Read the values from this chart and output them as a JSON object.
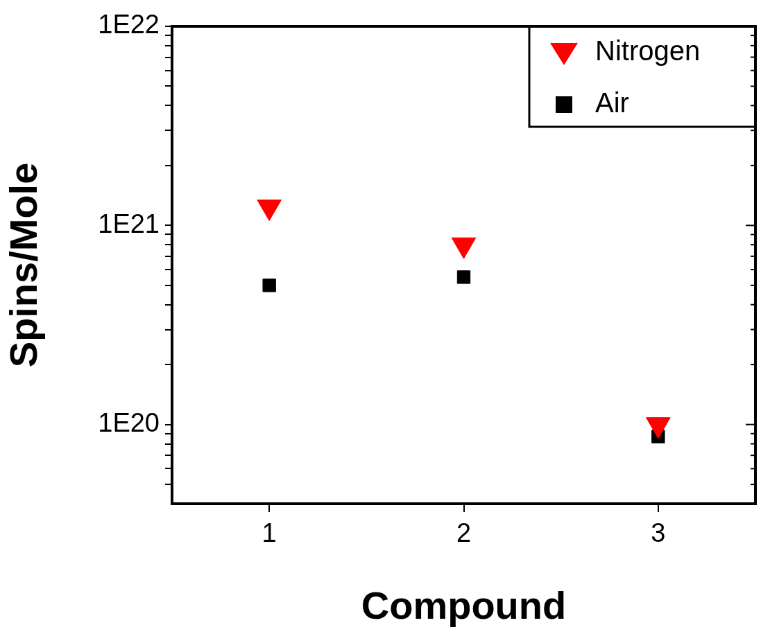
{
  "chart_data": {
    "type": "scatter",
    "xlabel": "Compound",
    "ylabel": "Spins/Mole",
    "x": [
      1,
      2,
      3
    ],
    "series": [
      {
        "name": "Nitrogen",
        "color": "#ff0000",
        "marker": "triangle",
        "values": [
          1.24e+21,
          8e+20,
          1e+20
        ]
      },
      {
        "name": "Air",
        "color": "#000000",
        "marker": "square",
        "values": [
          5e+20,
          5.5e+20,
          8.7e+19
        ]
      }
    ],
    "log": "y",
    "xlim": [
      0.5,
      3.5
    ],
    "xticks": [
      1,
      2,
      3
    ],
    "ylim": [
      4e+19,
      1e+22
    ],
    "yticks": [
      {
        "value": 5e+19,
        "label": null
      },
      {
        "value": 6e+19,
        "label": null
      },
      {
        "value": 7e+19,
        "label": null
      },
      {
        "value": 8e+19,
        "label": null
      },
      {
        "value": 9e+19,
        "label": null
      },
      {
        "value": 1e+20,
        "label": "1E20"
      },
      {
        "value": 2e+20,
        "label": null
      },
      {
        "value": 3e+20,
        "label": null
      },
      {
        "value": 4e+20,
        "label": null
      },
      {
        "value": 5e+20,
        "label": null
      },
      {
        "value": 6e+20,
        "label": null
      },
      {
        "value": 7e+20,
        "label": null
      },
      {
        "value": 8e+20,
        "label": null
      },
      {
        "value": 9e+20,
        "label": null
      },
      {
        "value": 1e+21,
        "label": "1E21"
      },
      {
        "value": 2e+21,
        "label": null
      },
      {
        "value": 3e+21,
        "label": null
      },
      {
        "value": 4e+21,
        "label": null
      },
      {
        "value": 5e+21,
        "label": null
      },
      {
        "value": 6e+21,
        "label": null
      },
      {
        "value": 7e+21,
        "label": null
      },
      {
        "value": 8e+21,
        "label": null
      },
      {
        "value": 9e+21,
        "label": null
      },
      {
        "value": 1e+22,
        "label": "1E22"
      }
    ],
    "grid": false,
    "legend": "top right"
  }
}
